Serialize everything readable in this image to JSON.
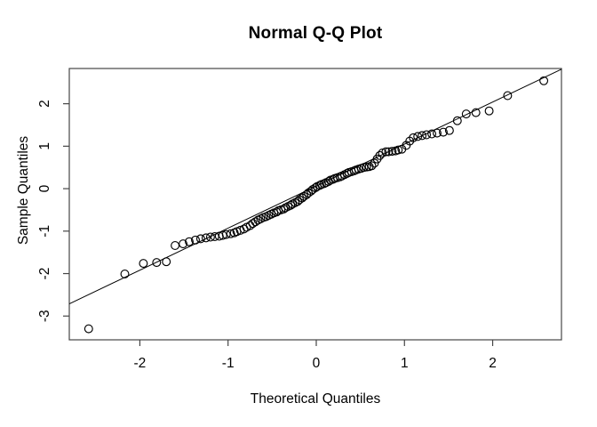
{
  "window": {
    "background": "#ffffff"
  },
  "chart_data": {
    "type": "scatter",
    "subtype": "normal-qq-plot",
    "title": "Normal Q-Q Plot",
    "xlabel": "Theoretical Quantiles",
    "ylabel": "Sample Quantiles",
    "xlim": [
      -2.8,
      2.78
    ],
    "ylim": [
      -3.56,
      2.83
    ],
    "xticks": [
      -2,
      -1,
      0,
      1,
      2
    ],
    "yticks": [
      -3,
      -2,
      -1,
      0,
      1,
      2
    ],
    "grid": false,
    "legend": null,
    "marker": {
      "shape": "open-circle",
      "color": "#000000",
      "radius": 4.4,
      "stroke_width": 1.15
    },
    "reference_line": {
      "slope": 0.99,
      "intercept": 0.06,
      "color": "#000000",
      "width": 1
    },
    "axis_color": "#454545",
    "text_color": "#000000",
    "tick_length": 7,
    "x": [
      -2.58,
      -2.17,
      -1.96,
      -1.81,
      -1.7,
      -1.6,
      -1.51,
      -1.44,
      -1.37,
      -1.31,
      -1.25,
      -1.2,
      -1.15,
      -1.1,
      -1.06,
      -1.02,
      -0.97,
      -0.93,
      -0.9,
      -0.86,
      -0.82,
      -0.79,
      -0.75,
      -0.72,
      -0.69,
      -0.66,
      -0.63,
      -0.6,
      -0.57,
      -0.54,
      -0.51,
      -0.48,
      -0.45,
      -0.43,
      -0.4,
      -0.37,
      -0.35,
      -0.32,
      -0.29,
      -0.27,
      -0.24,
      -0.21,
      -0.19,
      -0.16,
      -0.14,
      -0.11,
      -0.09,
      -0.06,
      -0.04,
      -0.01,
      0.01,
      0.04,
      0.06,
      0.09,
      0.11,
      0.14,
      0.16,
      0.19,
      0.21,
      0.24,
      0.27,
      0.29,
      0.32,
      0.35,
      0.37,
      0.4,
      0.43,
      0.45,
      0.48,
      0.51,
      0.54,
      0.57,
      0.6,
      0.63,
      0.66,
      0.69,
      0.72,
      0.75,
      0.79,
      0.82,
      0.86,
      0.9,
      0.93,
      0.97,
      1.02,
      1.06,
      1.1,
      1.15,
      1.2,
      1.25,
      1.31,
      1.37,
      1.44,
      1.51,
      1.6,
      1.7,
      1.81,
      1.96,
      2.17,
      2.58
    ],
    "y": [
      -3.3,
      -2.01,
      -1.76,
      -1.74,
      -1.72,
      -1.34,
      -1.3,
      -1.25,
      -1.21,
      -1.18,
      -1.16,
      -1.14,
      -1.13,
      -1.12,
      -1.1,
      -1.08,
      -1.06,
      -1.04,
      -1.01,
      -0.98,
      -0.95,
      -0.91,
      -0.87,
      -0.82,
      -0.78,
      -0.74,
      -0.71,
      -0.68,
      -0.66,
      -0.63,
      -0.6,
      -0.57,
      -0.55,
      -0.52,
      -0.5,
      -0.48,
      -0.45,
      -0.42,
      -0.39,
      -0.36,
      -0.33,
      -0.3,
      -0.26,
      -0.22,
      -0.18,
      -0.14,
      -0.1,
      -0.06,
      -0.02,
      0.02,
      0.05,
      0.08,
      0.1,
      0.12,
      0.14,
      0.17,
      0.2,
      0.22,
      0.24,
      0.26,
      0.28,
      0.3,
      0.33,
      0.36,
      0.38,
      0.4,
      0.42,
      0.44,
      0.46,
      0.48,
      0.5,
      0.51,
      0.52,
      0.54,
      0.6,
      0.7,
      0.78,
      0.84,
      0.87,
      0.87,
      0.88,
      0.89,
      0.91,
      0.93,
      1.02,
      1.12,
      1.2,
      1.23,
      1.25,
      1.27,
      1.29,
      1.31,
      1.33,
      1.37,
      1.6,
      1.76,
      1.79,
      1.83,
      2.19,
      2.54
    ]
  }
}
